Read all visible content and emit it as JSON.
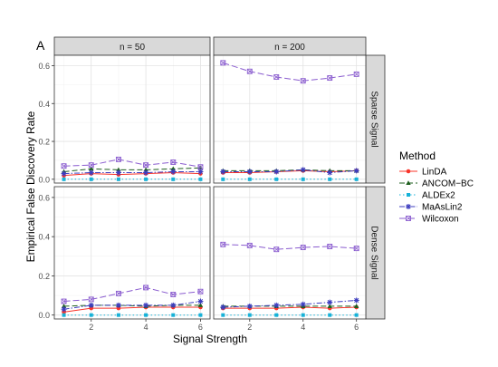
{
  "chart_data": {
    "type": "line",
    "panel_tag": "A",
    "xlabel": "Signal Strength",
    "ylabel": "Empirical False Discovery Rate",
    "col_facets": [
      "n = 50",
      "n = 200"
    ],
    "row_facets": [
      "Sparse Signal",
      "Dense Signal"
    ],
    "x": [
      1,
      2,
      3,
      4,
      5,
      6
    ],
    "xticks": [
      2,
      4,
      6
    ],
    "xlim": [
      0.65,
      6.35
    ],
    "ylim": [
      -0.02,
      0.655
    ],
    "yticks": [
      0.0,
      0.2,
      0.4,
      0.6
    ],
    "ytick_labels": [
      "0.0",
      "0.2",
      "0.4",
      "0.6"
    ],
    "grid": true,
    "legend": {
      "title": "Method",
      "position": "right",
      "items": [
        "LinDA",
        "ANCOM−BC",
        "ALDEx2",
        "MaAsLin2",
        "Wilcoxon"
      ]
    },
    "series_styles": [
      {
        "name": "LinDA",
        "color": "#f8342a",
        "dash": "",
        "marker": "circle"
      },
      {
        "name": "ANCOM−BC",
        "color": "#1f5f1f",
        "dash": "6,3",
        "marker": "triangle"
      },
      {
        "name": "ALDEx2",
        "color": "#17b2d8",
        "dash": "1.5,2.5",
        "marker": "square"
      },
      {
        "name": "MaAsLin2",
        "color": "#3d3dbf",
        "dash": "6,2,1.5,2",
        "marker": "star"
      },
      {
        "name": "Wilcoxon",
        "color": "#8a5ccf",
        "dash": "7,3",
        "marker": "boxx"
      }
    ],
    "panels": [
      {
        "col": 0,
        "row": 0,
        "series": [
          {
            "name": "LinDA",
            "values": [
              0.02,
              0.03,
              0.025,
              0.03,
              0.035,
              0.03
            ]
          },
          {
            "name": "ANCOM−BC",
            "values": [
              0.04,
              0.055,
              0.05,
              0.05,
              0.055,
              0.06
            ]
          },
          {
            "name": "ALDEx2",
            "values": [
              0.0,
              0.0,
              0.0,
              0.0,
              0.0,
              0.0
            ]
          },
          {
            "name": "MaAsLin2",
            "values": [
              0.03,
              0.035,
              0.035,
              0.035,
              0.04,
              0.04
            ]
          },
          {
            "name": "Wilcoxon",
            "values": [
              0.07,
              0.075,
              0.105,
              0.075,
              0.09,
              0.065
            ]
          }
        ]
      },
      {
        "col": 1,
        "row": 0,
        "series": [
          {
            "name": "LinDA",
            "values": [
              0.035,
              0.035,
              0.04,
              0.045,
              0.04,
              0.045
            ]
          },
          {
            "name": "ANCOM−BC",
            "values": [
              0.045,
              0.045,
              0.045,
              0.05,
              0.045,
              0.045
            ]
          },
          {
            "name": "ALDEx2",
            "values": [
              0.0,
              0.0,
              0.0,
              0.0,
              0.0,
              0.0
            ]
          },
          {
            "name": "MaAsLin2",
            "values": [
              0.04,
              0.04,
              0.04,
              0.05,
              0.035,
              0.045
            ]
          },
          {
            "name": "Wilcoxon",
            "values": [
              0.615,
              0.57,
              0.54,
              0.52,
              0.535,
              0.555
            ]
          }
        ]
      },
      {
        "col": 0,
        "row": 1,
        "series": [
          {
            "name": "LinDA",
            "values": [
              0.015,
              0.035,
              0.035,
              0.04,
              0.04,
              0.04
            ]
          },
          {
            "name": "ANCOM−BC",
            "values": [
              0.045,
              0.05,
              0.05,
              0.045,
              0.05,
              0.05
            ]
          },
          {
            "name": "ALDEx2",
            "values": [
              0.0,
              0.0,
              0.0,
              0.0,
              0.0,
              0.0
            ]
          },
          {
            "name": "MaAsLin2",
            "values": [
              0.03,
              0.05,
              0.05,
              0.05,
              0.05,
              0.07
            ]
          },
          {
            "name": "Wilcoxon",
            "values": [
              0.07,
              0.08,
              0.11,
              0.14,
              0.105,
              0.12
            ]
          }
        ]
      },
      {
        "col": 1,
        "row": 1,
        "series": [
          {
            "name": "LinDA",
            "values": [
              0.035,
              0.035,
              0.035,
              0.04,
              0.035,
              0.04
            ]
          },
          {
            "name": "ANCOM−BC",
            "values": [
              0.045,
              0.045,
              0.045,
              0.045,
              0.045,
              0.045
            ]
          },
          {
            "name": "ALDEx2",
            "values": [
              0.0,
              0.0,
              0.0,
              0.0,
              0.0,
              0.0
            ]
          },
          {
            "name": "MaAsLin2",
            "values": [
              0.04,
              0.045,
              0.05,
              0.055,
              0.065,
              0.075
            ]
          },
          {
            "name": "Wilcoxon",
            "values": [
              0.36,
              0.355,
              0.335,
              0.345,
              0.35,
              0.34
            ]
          }
        ]
      }
    ]
  }
}
